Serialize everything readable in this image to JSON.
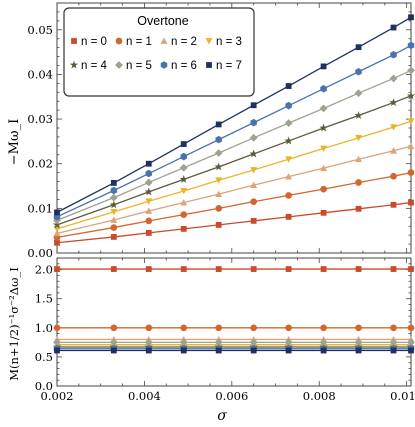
{
  "figure": {
    "legend_title": "Overtone"
  },
  "chart_data": [
    {
      "type": "scatter",
      "xlabel": "σ",
      "ylabel": "−Mω_I",
      "xlim": [
        0.002,
        0.0101
      ],
      "ylim": [
        0,
        0.056
      ],
      "yticks": [
        "0.00",
        "0.01",
        "0.02",
        "0.03",
        "0.04",
        "0.05"
      ],
      "grid": false,
      "legend": "top-left",
      "x": [
        0.002,
        0.0033,
        0.0041,
        0.0049,
        0.0057,
        0.0065,
        0.0073,
        0.0081,
        0.0089,
        0.0097,
        0.0101
      ],
      "series": [
        {
          "name": "n = 0",
          "marker": "square",
          "color": "#c94b2b",
          "values": [
            0.0023,
            0.0036,
            0.0045,
            0.0054,
            0.0063,
            0.0072,
            0.0081,
            0.009,
            0.0099,
            0.0108,
            0.0113
          ]
        },
        {
          "name": "n = 1",
          "marker": "circle",
          "color": "#d2662e",
          "values": [
            0.0035,
            0.0057,
            0.0072,
            0.0086,
            0.01,
            0.0115,
            0.0129,
            0.0143,
            0.0158,
            0.0172,
            0.018
          ]
        },
        {
          "name": "n = 2",
          "marker": "triangle",
          "color": "#dba47a",
          "values": [
            0.0044,
            0.0074,
            0.0094,
            0.0113,
            0.0132,
            0.0152,
            0.0171,
            0.019,
            0.021,
            0.0229,
            0.0239
          ]
        },
        {
          "name": "n = 3",
          "marker": "triangle-down",
          "color": "#e8b52a",
          "values": [
            0.0054,
            0.0092,
            0.0116,
            0.0139,
            0.0163,
            0.0186,
            0.021,
            0.0234,
            0.0258,
            0.0282,
            0.0295
          ]
        },
        {
          "name": "n = 4",
          "marker": "star",
          "color": "#5e5a3c",
          "values": [
            0.0063,
            0.0108,
            0.0137,
            0.0165,
            0.0193,
            0.0222,
            0.0251,
            0.028,
            0.0308,
            0.0337,
            0.0352
          ]
        },
        {
          "name": "n = 5",
          "marker": "diamond",
          "color": "#9ea38f",
          "values": [
            0.0073,
            0.0124,
            0.0158,
            0.0191,
            0.0224,
            0.0258,
            0.0291,
            0.0324,
            0.0358,
            0.0391,
            0.0409
          ]
        },
        {
          "name": "n = 6",
          "marker": "hexagon",
          "color": "#4a72ad",
          "values": [
            0.0081,
            0.014,
            0.0178,
            0.0216,
            0.0254,
            0.0292,
            0.033,
            0.0368,
            0.0406,
            0.0444,
            0.0465
          ]
        },
        {
          "name": "n = 7",
          "marker": "square",
          "color": "#1e3160",
          "values": [
            0.0091,
            0.0157,
            0.02,
            0.0244,
            0.0288,
            0.0331,
            0.0374,
            0.0418,
            0.0461,
            0.0505,
            0.0528
          ]
        }
      ]
    },
    {
      "type": "scatter",
      "xlabel": "σ",
      "ylabel": "M(n+1/2)⁻¹σ⁻²Δω_I",
      "xlim": [
        0.002,
        0.0101
      ],
      "ylim": [
        0,
        2.2
      ],
      "xticks": [
        "0.002",
        "0.004",
        "0.006",
        "0.008",
        "0.010"
      ],
      "yticks": [
        "0.0",
        "0.5",
        "1.0",
        "1.5",
        "2.0"
      ],
      "grid": false,
      "x": [
        0.002,
        0.0033,
        0.0041,
        0.0049,
        0.0057,
        0.0065,
        0.0073,
        0.0081,
        0.0089,
        0.0097,
        0.0101
      ],
      "series": [
        {
          "name": "n = 0",
          "marker": "square",
          "color": "#c94b2b",
          "values": [
            2.01,
            2.01,
            2.01,
            2.01,
            2.01,
            2.01,
            2.01,
            2.01,
            2.01,
            2.01,
            2.01
          ]
        },
        {
          "name": "n = 1",
          "marker": "circle",
          "color": "#d2662e",
          "values": [
            1.0,
            1.0,
            1.0,
            1.0,
            1.0,
            1.0,
            1.0,
            1.0,
            1.0,
            1.0,
            1.0
          ]
        },
        {
          "name": "n = 2",
          "marker": "triangle",
          "color": "#dba47a",
          "values": [
            0.8,
            0.8,
            0.8,
            0.8,
            0.8,
            0.8,
            0.8,
            0.8,
            0.8,
            0.8,
            0.8
          ]
        },
        {
          "name": "n = 3",
          "marker": "triangle-down",
          "color": "#e8b52a",
          "values": [
            0.71,
            0.71,
            0.71,
            0.71,
            0.71,
            0.71,
            0.71,
            0.71,
            0.71,
            0.71,
            0.71
          ]
        },
        {
          "name": "n = 4",
          "marker": "star",
          "color": "#5e5a3c",
          "values": [
            0.67,
            0.67,
            0.67,
            0.67,
            0.67,
            0.67,
            0.67,
            0.67,
            0.67,
            0.67,
            0.67
          ]
        },
        {
          "name": "n = 5",
          "marker": "diamond",
          "color": "#9ea38f",
          "values": [
            0.75,
            0.75,
            0.75,
            0.75,
            0.75,
            0.75,
            0.75,
            0.75,
            0.75,
            0.75,
            0.75
          ]
        },
        {
          "name": "n = 6",
          "marker": "hexagon",
          "color": "#4a72ad",
          "values": [
            0.64,
            0.64,
            0.64,
            0.64,
            0.64,
            0.64,
            0.64,
            0.64,
            0.64,
            0.64,
            0.64
          ]
        },
        {
          "name": "n = 7",
          "marker": "square",
          "color": "#1e3160",
          "values": [
            0.61,
            0.61,
            0.61,
            0.61,
            0.61,
            0.61,
            0.61,
            0.61,
            0.61,
            0.61,
            0.61
          ]
        }
      ]
    }
  ]
}
